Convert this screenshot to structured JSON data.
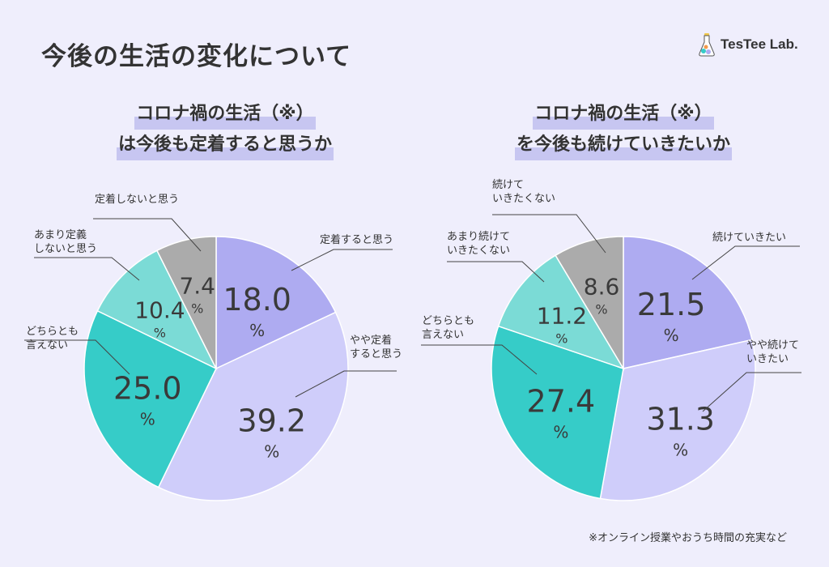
{
  "title": "今後の生活の変化について",
  "logo": {
    "text": "TesTee Lab.",
    "icon": "flask-icon"
  },
  "footnote": "※オンライン授業やおうち時間の充実など",
  "chart_data": [
    {
      "type": "pie",
      "title_lines": [
        "コロナ禍の生活（※）",
        "は今後も定着すると思うか"
      ],
      "unit": "%",
      "slices": [
        {
          "label": "定着すると思う",
          "value": 18.0,
          "color": "#aeabf1"
        },
        {
          "label": "やや定着すると思う",
          "value": 39.2,
          "color": "#cfcdfa"
        },
        {
          "label": "どちらとも言えない",
          "value": 25.0,
          "color": "#36ccc8"
        },
        {
          "label": "あまり定義しないと思う",
          "value": 10.4,
          "color": "#7bdbd6"
        },
        {
          "label": "定着しないと思う",
          "value": 7.4,
          "color": "#ababab"
        }
      ]
    },
    {
      "type": "pie",
      "title_lines": [
        "コロナ禍の生活（※）",
        "を今後も続けていきたいか"
      ],
      "unit": "%",
      "slices": [
        {
          "label": "続けていきたい",
          "value": 21.5,
          "color": "#aeabf1"
        },
        {
          "label": "やや続けていきたい",
          "value": 31.3,
          "color": "#cfcdfa"
        },
        {
          "label": "どちらとも言えない",
          "value": 27.4,
          "color": "#36ccc8"
        },
        {
          "label": "あまり続けていきたくない",
          "value": 11.2,
          "color": "#7bdbd6"
        },
        {
          "label": "続けていきたくない",
          "value": 8.6,
          "color": "#ababab"
        }
      ]
    }
  ]
}
